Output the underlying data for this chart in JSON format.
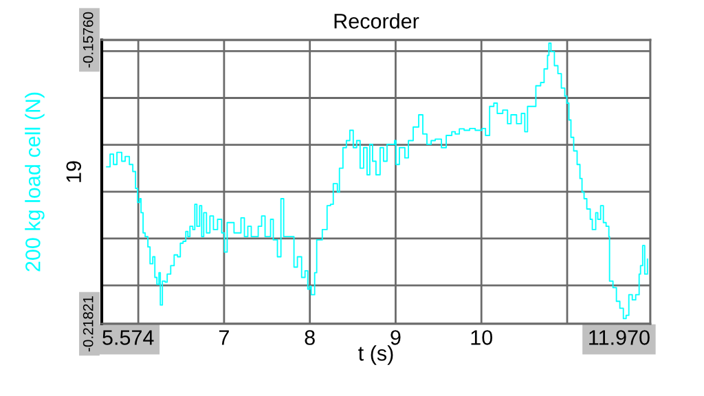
{
  "chart_data": {
    "type": "step",
    "title": "Recorder",
    "xlabel": "t (s)",
    "ylabel": "200 kg load cell (N)",
    "xlim": [
      5.574,
      11.97
    ],
    "xticks": [
      {
        "value": 5.574,
        "label": "5.574"
      },
      {
        "value": 6,
        "label": null
      },
      7,
      8,
      9,
      10,
      {
        "value": 11,
        "label": null
      },
      {
        "value": 11.97,
        "label": "11.970"
      }
    ],
    "ylim": [
      -0.21821,
      -0.1576
    ],
    "yticks": [
      {
        "value": -0.1576,
        "label": "-0.15760"
      },
      {
        "value": -0.16,
        "label": null
      },
      {
        "value": -0.17,
        "label": null
      },
      {
        "value": -0.18,
        "label": null
      },
      {
        "value": -0.19,
        "label": null
      },
      {
        "value": -0.2,
        "label": null
      },
      {
        "value": -0.21,
        "label": null
      },
      {
        "value": -0.21821,
        "label": "-0.21821"
      }
    ],
    "grid": true,
    "legend": false,
    "annotations": [
      "19"
    ],
    "series": [
      {
        "color": "#00ffff",
        "x": [
          5.631,
          5.671,
          5.711,
          5.751,
          5.807,
          5.847,
          5.896,
          5.936,
          5.968,
          5.992,
          6.016,
          6.032,
          6.056,
          6.08,
          6.112,
          6.137,
          6.169,
          6.193,
          6.217,
          6.241,
          6.257,
          6.281,
          6.313,
          6.337,
          6.378,
          6.418,
          6.458,
          6.49,
          6.522,
          6.554,
          6.578,
          6.602,
          6.635,
          6.659,
          6.683,
          6.715,
          6.739,
          6.763,
          6.795,
          6.835,
          6.876,
          6.924,
          6.972,
          7.004,
          7.036,
          7.116,
          7.197,
          7.237,
          7.277,
          7.317,
          7.398,
          7.438,
          7.478,
          7.542,
          7.574,
          7.622,
          7.663,
          7.695,
          7.759,
          7.815,
          7.855,
          7.904,
          7.944,
          7.976,
          8.0,
          8.016,
          8.056,
          8.08,
          8.145,
          8.201,
          8.241,
          8.273,
          8.321,
          8.345,
          8.386,
          8.426,
          8.466,
          8.506,
          8.546,
          8.586,
          8.627,
          8.667,
          8.699,
          8.731,
          8.771,
          8.819,
          8.859,
          8.9,
          8.988,
          9.004,
          9.044,
          9.108,
          9.149,
          9.205,
          9.269,
          9.317,
          9.365,
          9.414,
          9.462,
          9.534,
          9.59,
          9.655,
          9.695,
          9.743,
          9.799,
          9.863,
          9.928,
          10.008,
          10.048,
          10.096,
          10.145,
          10.185,
          10.249,
          10.305,
          10.345,
          10.41,
          10.466,
          10.506,
          10.538,
          10.594,
          10.635,
          10.691,
          10.731,
          10.771,
          10.787,
          10.811,
          10.851,
          10.892,
          10.932,
          10.972,
          10.996,
          11.02,
          11.044,
          11.076,
          11.116,
          11.149,
          11.173,
          11.197,
          11.229,
          11.269,
          11.293,
          11.333,
          11.357,
          11.39,
          11.422,
          11.454,
          11.486,
          11.494,
          11.534,
          11.574,
          11.614,
          11.655,
          11.687,
          11.719,
          11.759,
          11.799,
          11.839,
          11.855,
          11.88,
          11.904,
          11.936
        ],
        "values": [
          -0.1847,
          -0.182,
          -0.1842,
          -0.1816,
          -0.1835,
          -0.1825,
          -0.1842,
          -0.1857,
          -0.1893,
          -0.1923,
          -0.1915,
          -0.1945,
          -0.1988,
          -0.1996,
          -0.2018,
          -0.2054,
          -0.2039,
          -0.2083,
          -0.2098,
          -0.2073,
          -0.2142,
          -0.2091,
          -0.2093,
          -0.2076,
          -0.2058,
          -0.2035,
          -0.2039,
          -0.201,
          -0.2006,
          -0.1985,
          -0.1996,
          -0.1974,
          -0.1981,
          -0.1927,
          -0.1974,
          -0.193,
          -0.1996,
          -0.1945,
          -0.1988,
          -0.1952,
          -0.1981,
          -0.1959,
          -0.1988,
          -0.2029,
          -0.1966,
          -0.1988,
          -0.1956,
          -0.1996,
          -0.1974,
          -0.1996,
          -0.1974,
          -0.1952,
          -0.1996,
          -0.1959,
          -0.2003,
          -0.2039,
          -0.1915,
          -0.1996,
          -0.1996,
          -0.2061,
          -0.2039,
          -0.2083,
          -0.2069,
          -0.2108,
          -0.2102,
          -0.212,
          -0.2073,
          -0.2003,
          -0.1981,
          -0.193,
          -0.1927,
          -0.1883,
          -0.1901,
          -0.185,
          -0.1806,
          -0.1791,
          -0.1769,
          -0.1806,
          -0.1791,
          -0.185,
          -0.1806,
          -0.1864,
          -0.1799,
          -0.1835,
          -0.1864,
          -0.1806,
          -0.1835,
          -0.1799,
          -0.1791,
          -0.1842,
          -0.1806,
          -0.1828,
          -0.1791,
          -0.1762,
          -0.1736,
          -0.1777,
          -0.1799,
          -0.1791,
          -0.1788,
          -0.1806,
          -0.178,
          -0.1772,
          -0.1777,
          -0.1766,
          -0.1769,
          -0.1765,
          -0.1769,
          -0.1765,
          -0.178,
          -0.1718,
          -0.1711,
          -0.1733,
          -0.1726,
          -0.1755,
          -0.1736,
          -0.1755,
          -0.1733,
          -0.1772,
          -0.1718,
          -0.1718,
          -0.1674,
          -0.1667,
          -0.1638,
          -0.1609,
          -0.1583,
          -0.1601,
          -0.1631,
          -0.1648,
          -0.1679,
          -0.1696,
          -0.1711,
          -0.1747,
          -0.1784,
          -0.1813,
          -0.1842,
          -0.1872,
          -0.1901,
          -0.1915,
          -0.1937,
          -0.1959,
          -0.1981,
          -0.1945,
          -0.1959,
          -0.193,
          -0.1966,
          -0.1974,
          -0.1996,
          -0.2091,
          -0.2105,
          -0.2134,
          -0.2149,
          -0.2171,
          -0.2164,
          -0.212,
          -0.2131,
          -0.212,
          -0.2076,
          -0.2058,
          -0.2015,
          -0.2076,
          -0.2044
        ]
      }
    ]
  }
}
